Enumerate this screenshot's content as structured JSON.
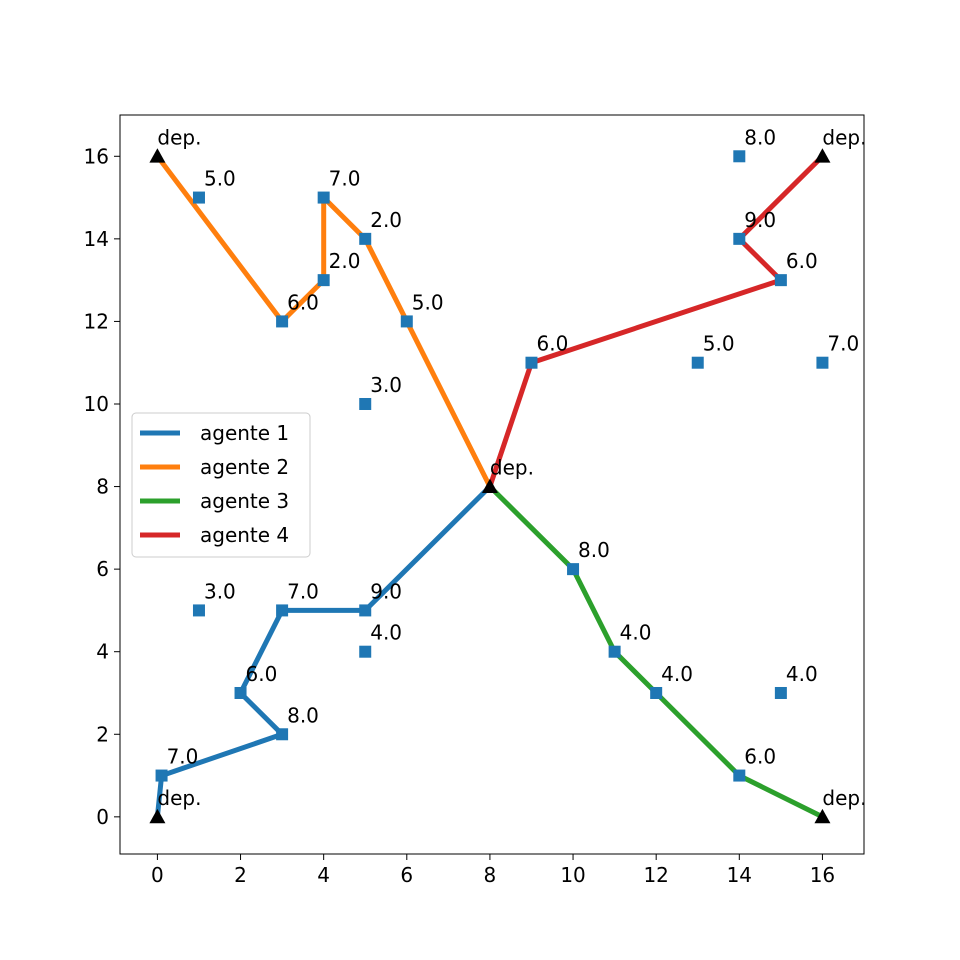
{
  "chart_data": {
    "type": "line",
    "title": "",
    "xlabel": "",
    "ylabel": "",
    "xlim": [
      -0.9,
      17.0
    ],
    "ylim": [
      -0.9,
      17.0
    ],
    "xticks": [
      0,
      2,
      4,
      6,
      8,
      10,
      12,
      14,
      16
    ],
    "yticks": [
      0,
      2,
      4,
      6,
      8,
      10,
      12,
      14,
      16
    ],
    "grid": false,
    "legend_position": "center-left",
    "series": [
      {
        "name": "agente 1",
        "color": "#1f77b4",
        "points": [
          [
            0,
            0
          ],
          [
            0.1,
            1
          ],
          [
            3,
            2
          ],
          [
            2,
            3
          ],
          [
            3,
            5
          ],
          [
            5,
            5
          ],
          [
            8,
            8
          ]
        ]
      },
      {
        "name": "agente 2",
        "color": "#ff7f0e",
        "points": [
          [
            0,
            16
          ],
          [
            3,
            12
          ],
          [
            4,
            13
          ],
          [
            4,
            15
          ],
          [
            5,
            14
          ],
          [
            6,
            12
          ],
          [
            8,
            8
          ]
        ]
      },
      {
        "name": "agente 3",
        "color": "#2ca02c",
        "points": [
          [
            8,
            8
          ],
          [
            10,
            6
          ],
          [
            11,
            4
          ],
          [
            12,
            3
          ],
          [
            14,
            1
          ],
          [
            16,
            0
          ]
        ]
      },
      {
        "name": "agente 4",
        "color": "#d62728",
        "points": [
          [
            8,
            8
          ],
          [
            9,
            11
          ],
          [
            15,
            13
          ],
          [
            14,
            14
          ],
          [
            16,
            16
          ]
        ]
      }
    ],
    "customers": {
      "color": "#1f77b4",
      "points": [
        {
          "x": 0.1,
          "y": 1,
          "label": "7.0"
        },
        {
          "x": 3,
          "y": 2,
          "label": "8.0"
        },
        {
          "x": 2,
          "y": 3,
          "label": "6.0"
        },
        {
          "x": 3,
          "y": 5,
          "label": "7.0"
        },
        {
          "x": 5,
          "y": 5,
          "label": "9.0"
        },
        {
          "x": 1,
          "y": 5,
          "label": "3.0"
        },
        {
          "x": 5,
          "y": 4,
          "label": "4.0"
        },
        {
          "x": 1,
          "y": 15,
          "label": "5.0"
        },
        {
          "x": 3,
          "y": 12,
          "label": "6.0"
        },
        {
          "x": 4,
          "y": 13,
          "label": "2.0"
        },
        {
          "x": 4,
          "y": 15,
          "label": "7.0"
        },
        {
          "x": 5,
          "y": 14,
          "label": "2.0"
        },
        {
          "x": 6,
          "y": 12,
          "label": "5.0"
        },
        {
          "x": 5,
          "y": 10,
          "label": "3.0"
        },
        {
          "x": 10,
          "y": 6,
          "label": "8.0"
        },
        {
          "x": 11,
          "y": 4,
          "label": "4.0"
        },
        {
          "x": 12,
          "y": 3,
          "label": "4.0"
        },
        {
          "x": 14,
          "y": 1,
          "label": "6.0"
        },
        {
          "x": 15,
          "y": 3,
          "label": "4.0"
        },
        {
          "x": 9,
          "y": 11,
          "label": "6.0"
        },
        {
          "x": 15,
          "y": 13,
          "label": "6.0"
        },
        {
          "x": 14,
          "y": 14,
          "label": "9.0"
        },
        {
          "x": 14,
          "y": 16,
          "label": "8.0"
        },
        {
          "x": 13,
          "y": 11,
          "label": "5.0"
        },
        {
          "x": 16,
          "y": 11,
          "label": "7.0"
        }
      ]
    },
    "depots": {
      "color": "#000000",
      "points": [
        {
          "x": 0,
          "y": 0,
          "label": "dep."
        },
        {
          "x": 0,
          "y": 16,
          "label": "dep."
        },
        {
          "x": 16,
          "y": 16,
          "label": "dep."
        },
        {
          "x": 16,
          "y": 0,
          "label": "dep."
        },
        {
          "x": 8,
          "y": 8,
          "label": "dep."
        }
      ]
    }
  }
}
